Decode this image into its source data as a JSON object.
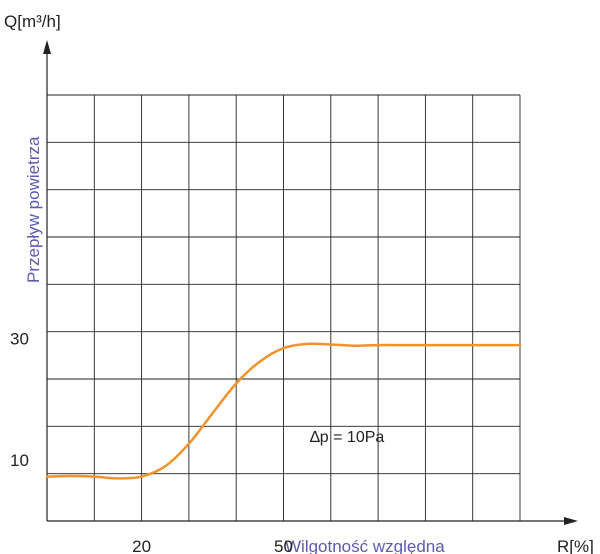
{
  "chart_data": {
    "type": "line",
    "ylabel": "Przepływ powietrza",
    "yunit": "Q[m³/h]",
    "xlabel": "Wilgotność względna",
    "xunit": "R[%]",
    "x_tick_labels": [
      {
        "label": "20",
        "value": 20
      },
      {
        "label": "50",
        "value": 50
      }
    ],
    "y_tick_labels": [
      {
        "label": "10",
        "value": 10
      },
      {
        "label": "30",
        "value": 30
      }
    ],
    "xlim": [
      0,
      100
    ],
    "ylim": [
      0,
      70
    ],
    "grid": true,
    "annotation": "∆p = 10Pa",
    "series": [
      {
        "color": "#F0932B",
        "x": [
          0,
          5,
          10,
          15,
          20,
          25,
          30,
          35,
          40,
          45,
          50,
          55,
          60,
          65,
          70,
          75,
          80,
          85,
          90,
          95,
          100
        ],
        "y": [
          7.3,
          7.4,
          7.3,
          7.0,
          7.3,
          9.0,
          12.7,
          17.7,
          22.6,
          26.2,
          28.4,
          29.1,
          29.0,
          28.8,
          28.9,
          28.9,
          28.9,
          28.9,
          28.9,
          28.9,
          28.9
        ]
      }
    ]
  },
  "colors": {
    "axis": "#222222",
    "grid": "#222222",
    "label_accent": "#5B5BB0",
    "text": "#222222"
  }
}
